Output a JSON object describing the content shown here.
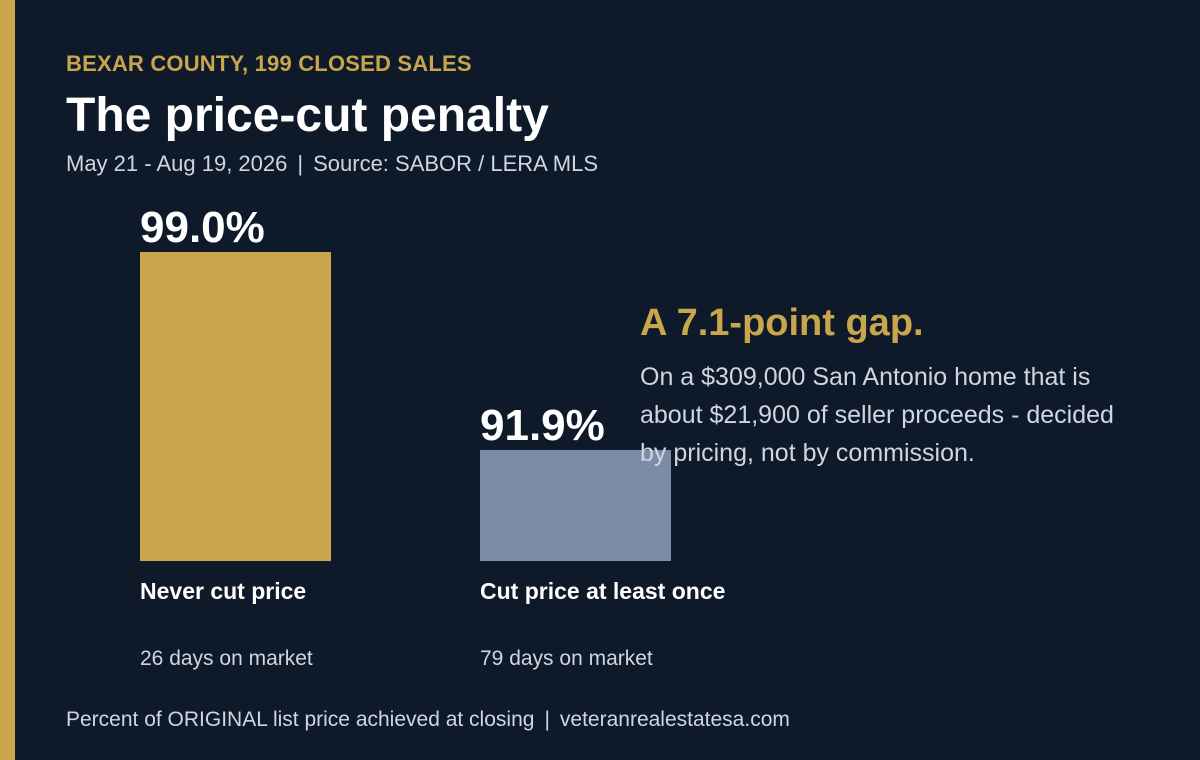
{
  "header": {
    "eyebrow": "BEXAR COUNTY, 199 CLOSED SALES",
    "title": "The price-cut penalty",
    "date_range": "May 21 - Aug 19, 2026",
    "separator": "|",
    "source": "Source: SABOR / LERA MLS"
  },
  "chart_data": {
    "type": "bar",
    "categories": [
      "Never cut price",
      "Cut price at least once"
    ],
    "values": [
      99.0,
      91.9
    ],
    "value_labels": [
      "99.0%",
      "91.9%"
    ],
    "days_on_market": [
      "26 days on market",
      "79 days on market"
    ],
    "colors": [
      "#c9a54b",
      "#7a8ca6"
    ],
    "unit": "%",
    "grid": false,
    "legend": "none"
  },
  "callout": {
    "headline": "A 7.1-point gap.",
    "body": "On a $309,000 San Antonio home that is about $21,900 of seller proceeds - decided by pricing, not by commission."
  },
  "footer": {
    "note": "Percent of ORIGINAL list price achieved at closing",
    "separator": "|",
    "site": "veteranrealestatesa.com"
  },
  "colors": {
    "background": "#0e1a2a",
    "accent": "#c9a54b",
    "muted_bar": "#7a8ca6",
    "text": "#ffffff",
    "muted_text": "#cfd6e0"
  }
}
